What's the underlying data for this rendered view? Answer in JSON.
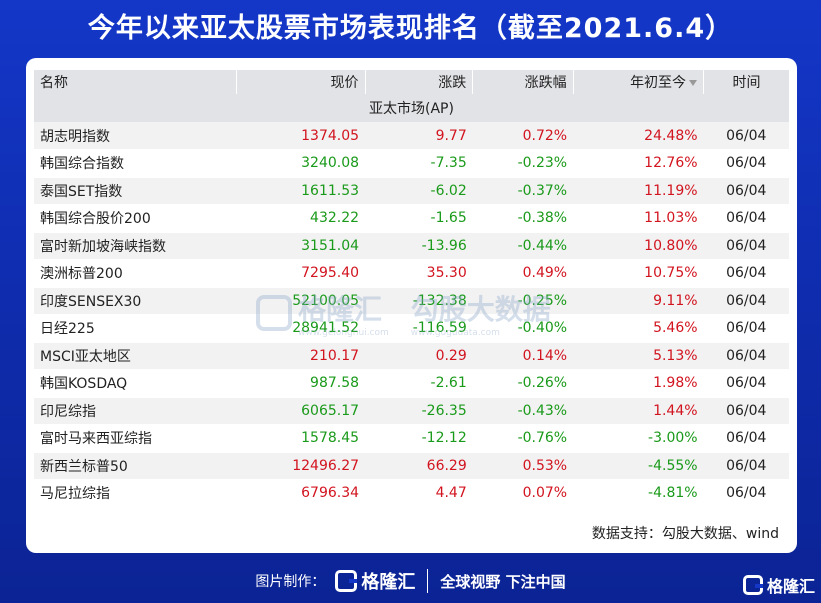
{
  "title": "今年以来亚太股票市场表现排名（截至2021.6.4）",
  "table": {
    "headers": {
      "name": "名称",
      "price": "现价",
      "change": "涨跌",
      "change_pct": "涨跌幅",
      "ytd": "年初至今",
      "time": "时间"
    },
    "section_label": "亚太市场(AP)",
    "rows": [
      {
        "name": "胡志明指数",
        "price": "1374.05",
        "change": "9.77",
        "change_pct": "0.72%",
        "ytd": "24.48%",
        "time": "06/04",
        "dir": "up",
        "ytd_dir": "up"
      },
      {
        "name": "韩国综合指数",
        "price": "3240.08",
        "change": "-7.35",
        "change_pct": "-0.23%",
        "ytd": "12.76%",
        "time": "06/04",
        "dir": "down",
        "ytd_dir": "up"
      },
      {
        "name": "泰国SET指数",
        "price": "1611.53",
        "change": "-6.02",
        "change_pct": "-0.37%",
        "ytd": "11.19%",
        "time": "06/04",
        "dir": "down",
        "ytd_dir": "up"
      },
      {
        "name": "韩国综合股价200",
        "price": "432.22",
        "change": "-1.65",
        "change_pct": "-0.38%",
        "ytd": "11.03%",
        "time": "06/04",
        "dir": "down",
        "ytd_dir": "up"
      },
      {
        "name": "富时新加坡海峡指数",
        "price": "3151.04",
        "change": "-13.96",
        "change_pct": "-0.44%",
        "ytd": "10.80%",
        "time": "06/04",
        "dir": "down",
        "ytd_dir": "up"
      },
      {
        "name": "澳洲标普200",
        "price": "7295.40",
        "change": "35.30",
        "change_pct": "0.49%",
        "ytd": "10.75%",
        "time": "06/04",
        "dir": "up",
        "ytd_dir": "up"
      },
      {
        "name": "印度SENSEX30",
        "price": "52100.05",
        "change": "-132.38",
        "change_pct": "-0.25%",
        "ytd": "9.11%",
        "time": "06/04",
        "dir": "down",
        "ytd_dir": "up"
      },
      {
        "name": "日经225",
        "price": "28941.52",
        "change": "-116.59",
        "change_pct": "-0.40%",
        "ytd": "5.46%",
        "time": "06/04",
        "dir": "down",
        "ytd_dir": "up"
      },
      {
        "name": "MSCI亚太地区",
        "price": "210.17",
        "change": "0.29",
        "change_pct": "0.14%",
        "ytd": "5.13%",
        "time": "06/04",
        "dir": "up",
        "ytd_dir": "up"
      },
      {
        "name": "韩国KOSDAQ",
        "price": "987.58",
        "change": "-2.61",
        "change_pct": "-0.26%",
        "ytd": "1.98%",
        "time": "06/04",
        "dir": "down",
        "ytd_dir": "up"
      },
      {
        "name": "印尼综指",
        "price": "6065.17",
        "change": "-26.35",
        "change_pct": "-0.43%",
        "ytd": "1.44%",
        "time": "06/04",
        "dir": "down",
        "ytd_dir": "up"
      },
      {
        "name": "富时马来西亚综指",
        "price": "1578.45",
        "change": "-12.12",
        "change_pct": "-0.76%",
        "ytd": "-3.00%",
        "time": "06/04",
        "dir": "down",
        "ytd_dir": "down"
      },
      {
        "name": "新西兰标普50",
        "price": "12496.27",
        "change": "66.29",
        "change_pct": "0.53%",
        "ytd": "-4.55%",
        "time": "06/04",
        "dir": "up",
        "ytd_dir": "down"
      },
      {
        "name": "马尼拉综指",
        "price": "6796.34",
        "change": "4.47",
        "change_pct": "0.07%",
        "ytd": "-4.81%",
        "time": "06/04",
        "dir": "up",
        "ytd_dir": "down"
      }
    ]
  },
  "source": "数据支持：勾股大数据、wind",
  "watermark": {
    "brand": "格隆汇",
    "brand_url": "www.gelonghui.com",
    "data_brand": "勾股大数据",
    "data_url": "www.gogudata.com"
  },
  "footer": {
    "credit": "图片制作：",
    "brand": "格隆汇",
    "slogan": "全球视野 下注中国"
  },
  "corner_brand": "格隆汇",
  "colors": {
    "up": "#d2141f",
    "down": "#1a9a1a",
    "background": "#1437c8"
  }
}
